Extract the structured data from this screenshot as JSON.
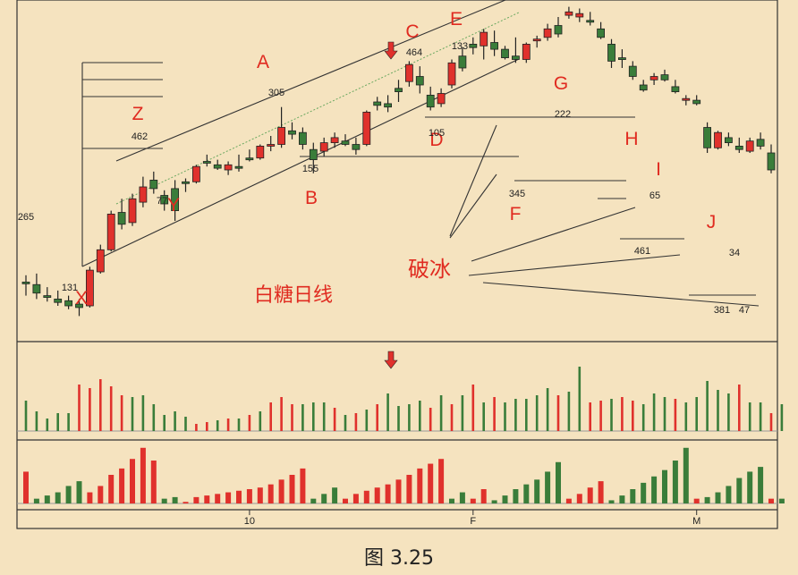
{
  "chart_data": [
    {
      "type": "candlestick",
      "title": "白糖日线",
      "x_ticks": [
        "10",
        "F",
        "M"
      ],
      "candles": [
        {
          "o": 268,
          "h": 276,
          "l": 252,
          "c": 268,
          "color": "green"
        },
        {
          "o": 265,
          "h": 278,
          "l": 248,
          "c": 255,
          "color": "green"
        },
        {
          "o": 252,
          "h": 262,
          "l": 245,
          "c": 250,
          "color": "green"
        },
        {
          "o": 248,
          "h": 258,
          "l": 240,
          "c": 244,
          "color": "green"
        },
        {
          "o": 246,
          "h": 252,
          "l": 236,
          "c": 240,
          "color": "green"
        },
        {
          "o": 242,
          "h": 248,
          "l": 228,
          "c": 238,
          "color": "green"
        },
        {
          "o": 240,
          "h": 286,
          "l": 238,
          "c": 282,
          "color": "red"
        },
        {
          "o": 280,
          "h": 312,
          "l": 278,
          "c": 306,
          "color": "red"
        },
        {
          "o": 306,
          "h": 352,
          "l": 304,
          "c": 348,
          "color": "red"
        },
        {
          "o": 350,
          "h": 366,
          "l": 330,
          "c": 336,
          "color": "green"
        },
        {
          "o": 338,
          "h": 372,
          "l": 334,
          "c": 366,
          "color": "red"
        },
        {
          "o": 362,
          "h": 392,
          "l": 356,
          "c": 380,
          "color": "red"
        },
        {
          "o": 388,
          "h": 398,
          "l": 372,
          "c": 378,
          "color": "green"
        },
        {
          "o": 370,
          "h": 376,
          "l": 352,
          "c": 360,
          "color": "green"
        },
        {
          "o": 378,
          "h": 388,
          "l": 340,
          "c": 352,
          "color": "green"
        },
        {
          "o": 384,
          "h": 390,
          "l": 374,
          "c": 386,
          "color": "green"
        },
        {
          "o": 386,
          "h": 406,
          "l": 384,
          "c": 404,
          "color": "red"
        },
        {
          "o": 410,
          "h": 418,
          "l": 404,
          "c": 410,
          "color": "green"
        },
        {
          "o": 406,
          "h": 412,
          "l": 400,
          "c": 402,
          "color": "green"
        },
        {
          "o": 400,
          "h": 410,
          "l": 394,
          "c": 406,
          "color": "red"
        },
        {
          "o": 404,
          "h": 418,
          "l": 398,
          "c": 404,
          "color": "green"
        },
        {
          "o": 414,
          "h": 424,
          "l": 410,
          "c": 414,
          "color": "green"
        },
        {
          "o": 414,
          "h": 430,
          "l": 412,
          "c": 428,
          "color": "red"
        },
        {
          "o": 428,
          "h": 440,
          "l": 422,
          "c": 430,
          "color": "red"
        },
        {
          "o": 430,
          "h": 474,
          "l": 426,
          "c": 450,
          "color": "red"
        },
        {
          "o": 446,
          "h": 456,
          "l": 436,
          "c": 442,
          "color": "green"
        },
        {
          "o": 444,
          "h": 450,
          "l": 424,
          "c": 430,
          "color": "green"
        },
        {
          "o": 412,
          "h": 432,
          "l": 396,
          "c": 424,
          "color": "green"
        },
        {
          "o": 422,
          "h": 438,
          "l": 416,
          "c": 432,
          "color": "red"
        },
        {
          "o": 432,
          "h": 444,
          "l": 426,
          "c": 438,
          "color": "red"
        },
        {
          "o": 434,
          "h": 442,
          "l": 428,
          "c": 430,
          "color": "green"
        },
        {
          "o": 430,
          "h": 438,
          "l": 418,
          "c": 424,
          "color": "green"
        },
        {
          "o": 430,
          "h": 470,
          "l": 428,
          "c": 468,
          "color": "red"
        },
        {
          "o": 476,
          "h": 486,
          "l": 470,
          "c": 480,
          "color": "green"
        },
        {
          "o": 478,
          "h": 488,
          "l": 468,
          "c": 474,
          "color": "green"
        },
        {
          "o": 492,
          "h": 506,
          "l": 480,
          "c": 496,
          "color": "green"
        },
        {
          "o": 504,
          "h": 528,
          "l": 498,
          "c": 524,
          "color": "red"
        },
        {
          "o": 510,
          "h": 522,
          "l": 490,
          "c": 500,
          "color": "green"
        },
        {
          "o": 488,
          "h": 498,
          "l": 470,
          "c": 474,
          "color": "green"
        },
        {
          "o": 478,
          "h": 496,
          "l": 474,
          "c": 490,
          "color": "red"
        },
        {
          "o": 500,
          "h": 530,
          "l": 496,
          "c": 526,
          "color": "red"
        },
        {
          "o": 534,
          "h": 544,
          "l": 516,
          "c": 520,
          "color": "green"
        },
        {
          "o": 544,
          "h": 556,
          "l": 536,
          "c": 548,
          "color": "green"
        },
        {
          "o": 546,
          "h": 566,
          "l": 530,
          "c": 562,
          "color": "red"
        },
        {
          "o": 550,
          "h": 564,
          "l": 534,
          "c": 542,
          "color": "green"
        },
        {
          "o": 542,
          "h": 546,
          "l": 530,
          "c": 532,
          "color": "green"
        },
        {
          "o": 534,
          "h": 556,
          "l": 526,
          "c": 530,
          "color": "green"
        },
        {
          "o": 530,
          "h": 550,
          "l": 526,
          "c": 548,
          "color": "red"
        },
        {
          "o": 552,
          "h": 558,
          "l": 544,
          "c": 554,
          "color": "red"
        },
        {
          "o": 556,
          "h": 572,
          "l": 552,
          "c": 566,
          "color": "red"
        },
        {
          "o": 570,
          "h": 580,
          "l": 556,
          "c": 560,
          "color": "green"
        },
        {
          "o": 586,
          "h": 592,
          "l": 578,
          "c": 582,
          "color": "red"
        },
        {
          "o": 584,
          "h": 590,
          "l": 574,
          "c": 580,
          "color": "red"
        },
        {
          "o": 576,
          "h": 586,
          "l": 570,
          "c": 574,
          "color": "green"
        },
        {
          "o": 566,
          "h": 574,
          "l": 554,
          "c": 556,
          "color": "green"
        },
        {
          "o": 548,
          "h": 554,
          "l": 520,
          "c": 528,
          "color": "green"
        },
        {
          "o": 532,
          "h": 542,
          "l": 520,
          "c": 530,
          "color": "green"
        },
        {
          "o": 522,
          "h": 528,
          "l": 506,
          "c": 510,
          "color": "green"
        },
        {
          "o": 500,
          "h": 506,
          "l": 492,
          "c": 494,
          "color": "green"
        },
        {
          "o": 506,
          "h": 514,
          "l": 500,
          "c": 510,
          "color": "red"
        },
        {
          "o": 512,
          "h": 518,
          "l": 504,
          "c": 506,
          "color": "green"
        },
        {
          "o": 498,
          "h": 506,
          "l": 490,
          "c": 492,
          "color": "green"
        },
        {
          "o": 482,
          "h": 488,
          "l": 476,
          "c": 484,
          "color": "red"
        },
        {
          "o": 482,
          "h": 488,
          "l": 476,
          "c": 478,
          "color": "green"
        },
        {
          "o": 450,
          "h": 456,
          "l": 420,
          "c": 426,
          "color": "green"
        },
        {
          "o": 426,
          "h": 446,
          "l": 424,
          "c": 444,
          "color": "red"
        },
        {
          "o": 438,
          "h": 444,
          "l": 428,
          "c": 432,
          "color": "green"
        },
        {
          "o": 424,
          "h": 438,
          "l": 420,
          "c": 428,
          "color": "green"
        },
        {
          "o": 422,
          "h": 438,
          "l": 420,
          "c": 434,
          "color": "red"
        },
        {
          "o": 436,
          "h": 444,
          "l": 424,
          "c": 428,
          "color": "green"
        },
        {
          "o": 420,
          "h": 430,
          "l": 396,
          "c": 400,
          "color": "green"
        }
      ],
      "volume": [
        {
          "v": 34,
          "color": "green"
        },
        {
          "v": 22,
          "color": "green"
        },
        {
          "v": 14,
          "color": "green"
        },
        {
          "v": 20,
          "color": "green"
        },
        {
          "v": 20,
          "color": "green"
        },
        {
          "v": 52,
          "color": "red"
        },
        {
          "v": 48,
          "color": "red"
        },
        {
          "v": 58,
          "color": "red"
        },
        {
          "v": 50,
          "color": "red"
        },
        {
          "v": 40,
          "color": "red"
        },
        {
          "v": 38,
          "color": "green"
        },
        {
          "v": 40,
          "color": "green"
        },
        {
          "v": 30,
          "color": "green"
        },
        {
          "v": 18,
          "color": "green"
        },
        {
          "v": 22,
          "color": "green"
        },
        {
          "v": 16,
          "color": "green"
        },
        {
          "v": 8,
          "color": "red"
        },
        {
          "v": 10,
          "color": "red"
        },
        {
          "v": 12,
          "color": "green"
        },
        {
          "v": 14,
          "color": "red"
        },
        {
          "v": 14,
          "color": "green"
        },
        {
          "v": 18,
          "color": "red"
        },
        {
          "v": 22,
          "color": "green"
        },
        {
          "v": 32,
          "color": "red"
        },
        {
          "v": 38,
          "color": "red"
        },
        {
          "v": 30,
          "color": "red"
        },
        {
          "v": 30,
          "color": "green"
        },
        {
          "v": 32,
          "color": "green"
        },
        {
          "v": 32,
          "color": "green"
        },
        {
          "v": 26,
          "color": "red"
        },
        {
          "v": 18,
          "color": "green"
        },
        {
          "v": 20,
          "color": "red"
        },
        {
          "v": 24,
          "color": "green"
        },
        {
          "v": 30,
          "color": "red"
        },
        {
          "v": 42,
          "color": "green"
        },
        {
          "v": 28,
          "color": "green"
        },
        {
          "v": 30,
          "color": "green"
        },
        {
          "v": 34,
          "color": "green"
        },
        {
          "v": 26,
          "color": "red"
        },
        {
          "v": 40,
          "color": "green"
        },
        {
          "v": 30,
          "color": "red"
        },
        {
          "v": 40,
          "color": "green"
        },
        {
          "v": 52,
          "color": "red"
        },
        {
          "v": 32,
          "color": "green"
        },
        {
          "v": 38,
          "color": "red"
        },
        {
          "v": 32,
          "color": "green"
        },
        {
          "v": 36,
          "color": "green"
        },
        {
          "v": 36,
          "color": "green"
        },
        {
          "v": 40,
          "color": "green"
        },
        {
          "v": 48,
          "color": "green"
        },
        {
          "v": 40,
          "color": "red"
        },
        {
          "v": 44,
          "color": "green"
        },
        {
          "v": 72,
          "color": "green"
        },
        {
          "v": 32,
          "color": "red"
        },
        {
          "v": 34,
          "color": "red"
        },
        {
          "v": 36,
          "color": "green"
        },
        {
          "v": 38,
          "color": "red"
        },
        {
          "v": 34,
          "color": "red"
        },
        {
          "v": 30,
          "color": "green"
        },
        {
          "v": 42,
          "color": "green"
        },
        {
          "v": 38,
          "color": "green"
        },
        {
          "v": 36,
          "color": "red"
        },
        {
          "v": 32,
          "color": "green"
        },
        {
          "v": 38,
          "color": "green"
        },
        {
          "v": 56,
          "color": "green"
        },
        {
          "v": 46,
          "color": "green"
        },
        {
          "v": 42,
          "color": "green"
        },
        {
          "v": 52,
          "color": "red"
        },
        {
          "v": 32,
          "color": "green"
        },
        {
          "v": 32,
          "color": "green"
        },
        {
          "v": 20,
          "color": "red"
        },
        {
          "v": 30,
          "color": "green"
        }
      ],
      "indicator": [
        {
          "v": 40,
          "color": "red"
        },
        {
          "v": 6,
          "color": "green"
        },
        {
          "v": 10,
          "color": "green"
        },
        {
          "v": 14,
          "color": "green"
        },
        {
          "v": 22,
          "color": "green"
        },
        {
          "v": 28,
          "color": "green"
        },
        {
          "v": 14,
          "color": "red"
        },
        {
          "v": 22,
          "color": "red"
        },
        {
          "v": 36,
          "color": "red"
        },
        {
          "v": 44,
          "color": "red"
        },
        {
          "v": 56,
          "color": "red"
        },
        {
          "v": 70,
          "color": "red"
        },
        {
          "v": 54,
          "color": "red"
        },
        {
          "v": 6,
          "color": "green"
        },
        {
          "v": 8,
          "color": "green"
        },
        {
          "v": 2,
          "color": "red"
        },
        {
          "v": 8,
          "color": "red"
        },
        {
          "v": 10,
          "color": "red"
        },
        {
          "v": 12,
          "color": "red"
        },
        {
          "v": 14,
          "color": "red"
        },
        {
          "v": 16,
          "color": "red"
        },
        {
          "v": 18,
          "color": "red"
        },
        {
          "v": 20,
          "color": "red"
        },
        {
          "v": 24,
          "color": "red"
        },
        {
          "v": 30,
          "color": "red"
        },
        {
          "v": 36,
          "color": "red"
        },
        {
          "v": 44,
          "color": "red"
        },
        {
          "v": 6,
          "color": "green"
        },
        {
          "v": 12,
          "color": "green"
        },
        {
          "v": 20,
          "color": "green"
        },
        {
          "v": 6,
          "color": "red"
        },
        {
          "v": 12,
          "color": "red"
        },
        {
          "v": 16,
          "color": "red"
        },
        {
          "v": 20,
          "color": "red"
        },
        {
          "v": 24,
          "color": "red"
        },
        {
          "v": 30,
          "color": "red"
        },
        {
          "v": 36,
          "color": "red"
        },
        {
          "v": 44,
          "color": "red"
        },
        {
          "v": 50,
          "color": "red"
        },
        {
          "v": 56,
          "color": "red"
        },
        {
          "v": 6,
          "color": "green"
        },
        {
          "v": 14,
          "color": "green"
        },
        {
          "v": 6,
          "color": "red"
        },
        {
          "v": 18,
          "color": "red"
        },
        {
          "v": 4,
          "color": "green"
        },
        {
          "v": 10,
          "color": "green"
        },
        {
          "v": 18,
          "color": "green"
        },
        {
          "v": 24,
          "color": "green"
        },
        {
          "v": 30,
          "color": "green"
        },
        {
          "v": 40,
          "color": "green"
        },
        {
          "v": 52,
          "color": "green"
        },
        {
          "v": 6,
          "color": "red"
        },
        {
          "v": 12,
          "color": "red"
        },
        {
          "v": 20,
          "color": "red"
        },
        {
          "v": 28,
          "color": "red"
        },
        {
          "v": 4,
          "color": "green"
        },
        {
          "v": 10,
          "color": "green"
        },
        {
          "v": 18,
          "color": "green"
        },
        {
          "v": 26,
          "color": "green"
        },
        {
          "v": 34,
          "color": "green"
        },
        {
          "v": 42,
          "color": "green"
        },
        {
          "v": 54,
          "color": "green"
        },
        {
          "v": 70,
          "color": "green"
        },
        {
          "v": 6,
          "color": "red"
        },
        {
          "v": 8,
          "color": "green"
        },
        {
          "v": 14,
          "color": "green"
        },
        {
          "v": 22,
          "color": "green"
        },
        {
          "v": 32,
          "color": "green"
        },
        {
          "v": 40,
          "color": "green"
        },
        {
          "v": 46,
          "color": "green"
        },
        {
          "v": 6,
          "color": "red"
        },
        {
          "v": 6,
          "color": "green"
        }
      ],
      "labels": {
        "letters": [
          "A",
          "B",
          "C",
          "D",
          "E",
          "F",
          "G",
          "H",
          "I",
          "J",
          "X",
          "Y",
          "Z"
        ],
        "numbers": [
          "265",
          "131",
          "462",
          "77",
          "305",
          "155",
          "464",
          "105",
          "133",
          "345",
          "222",
          "65",
          "461",
          "34",
          "381",
          "47"
        ],
        "annotation": "破冰"
      }
    }
  ],
  "figure_caption": "图 3.25",
  "colors": {
    "background": "#f5e3bf",
    "up": "#e0312c",
    "down": "#3a7d3a",
    "label": "#e02b20",
    "line": "#333333"
  }
}
